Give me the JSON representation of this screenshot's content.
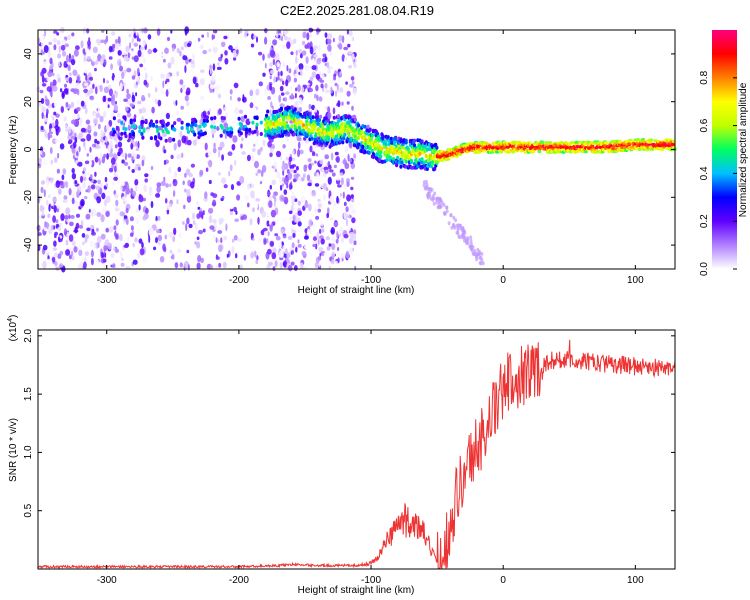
{
  "title": "C2E2.2025.281.08.04.R19",
  "chart_data": [
    {
      "type": "heatmap",
      "title": "C2E2.2025.281.08.04.R19",
      "xlabel": "Height of straight line (km)",
      "ylabel": "Frequency (Hz)",
      "xlim": [
        -352,
        130
      ],
      "ylim": [
        -50,
        50
      ],
      "xticks": [
        -300,
        -200,
        -100,
        0,
        100
      ],
      "yticks": [
        -40,
        -20,
        0,
        20,
        40
      ],
      "grid": false,
      "colorbar": {
        "label": "Normalized spectral amplitude",
        "range": [
          0,
          1
        ],
        "ticks": [
          0.0,
          0.2,
          0.4,
          0.6,
          0.8
        ],
        "colormap": [
          "#ffffff",
          "#b080ff",
          "#6000ff",
          "#0000ff",
          "#00c0ff",
          "#00ff60",
          "#c0ff00",
          "#ffff00",
          "#ff8000",
          "#ff0000",
          "#ff0080"
        ]
      },
      "ridge": {
        "x": [
          -290,
          -280,
          -270,
          -260,
          -250,
          -240,
          -230,
          -220,
          -210,
          -200,
          -190,
          -180,
          -170,
          -160,
          -150,
          -140,
          -130,
          -120,
          -110,
          -100,
          -90,
          -80,
          -70,
          -60,
          -55,
          -50,
          -40,
          -30,
          -20,
          -10,
          0,
          20,
          40,
          60,
          80,
          100,
          130
        ],
        "y": [
          10,
          9,
          8,
          8,
          7,
          8,
          9,
          10,
          9,
          10,
          11,
          10,
          11,
          12,
          10,
          8,
          7,
          9,
          6,
          3,
          0,
          -1,
          -2,
          -2,
          -3,
          -3,
          -2,
          0,
          1,
          1,
          1,
          1,
          1,
          1,
          1,
          2,
          2
        ]
      },
      "noise_region": [
        -352,
        -120
      ],
      "clean_tone_region": [
        -50,
        130
      ]
    },
    {
      "type": "line",
      "xlabel": "Height of straight line (km)",
      "ylabel": "SNR (10 * v/v)",
      "y_multiplier": "(x10",
      "y_multiplier_exp": "4",
      "y_multiplier_close": ")",
      "xlim": [
        -352,
        130
      ],
      "ylim": [
        0,
        2.05
      ],
      "xticks": [
        -300,
        -200,
        -100,
        0,
        100
      ],
      "yticks": [
        0.5,
        1.0,
        1.5,
        2.0
      ],
      "ytick_labels": [
        "0.5",
        "1.0",
        "1.5",
        "2.0"
      ],
      "grid": false,
      "color": "#ee3333",
      "envelope": {
        "x": [
          -352,
          -300,
          -200,
          -170,
          -160,
          -140,
          -120,
          -110,
          -100,
          -95,
          -90,
          -85,
          -80,
          -75,
          -70,
          -65,
          -60,
          -55,
          -50,
          -45,
          -40,
          -35,
          -30,
          -25,
          -20,
          -15,
          -10,
          -5,
          0,
          10,
          20,
          30,
          40,
          60,
          80,
          100,
          130
        ],
        "y": [
          0.02,
          0.02,
          0.02,
          0.03,
          0.04,
          0.03,
          0.03,
          0.03,
          0.05,
          0.1,
          0.2,
          0.3,
          0.38,
          0.42,
          0.4,
          0.36,
          0.3,
          0.18,
          0.05,
          0.15,
          0.4,
          0.65,
          0.8,
          0.95,
          1.05,
          1.15,
          1.3,
          1.4,
          1.55,
          1.65,
          1.7,
          1.75,
          1.8,
          1.78,
          1.76,
          1.74,
          1.72
        ]
      }
    }
  ]
}
